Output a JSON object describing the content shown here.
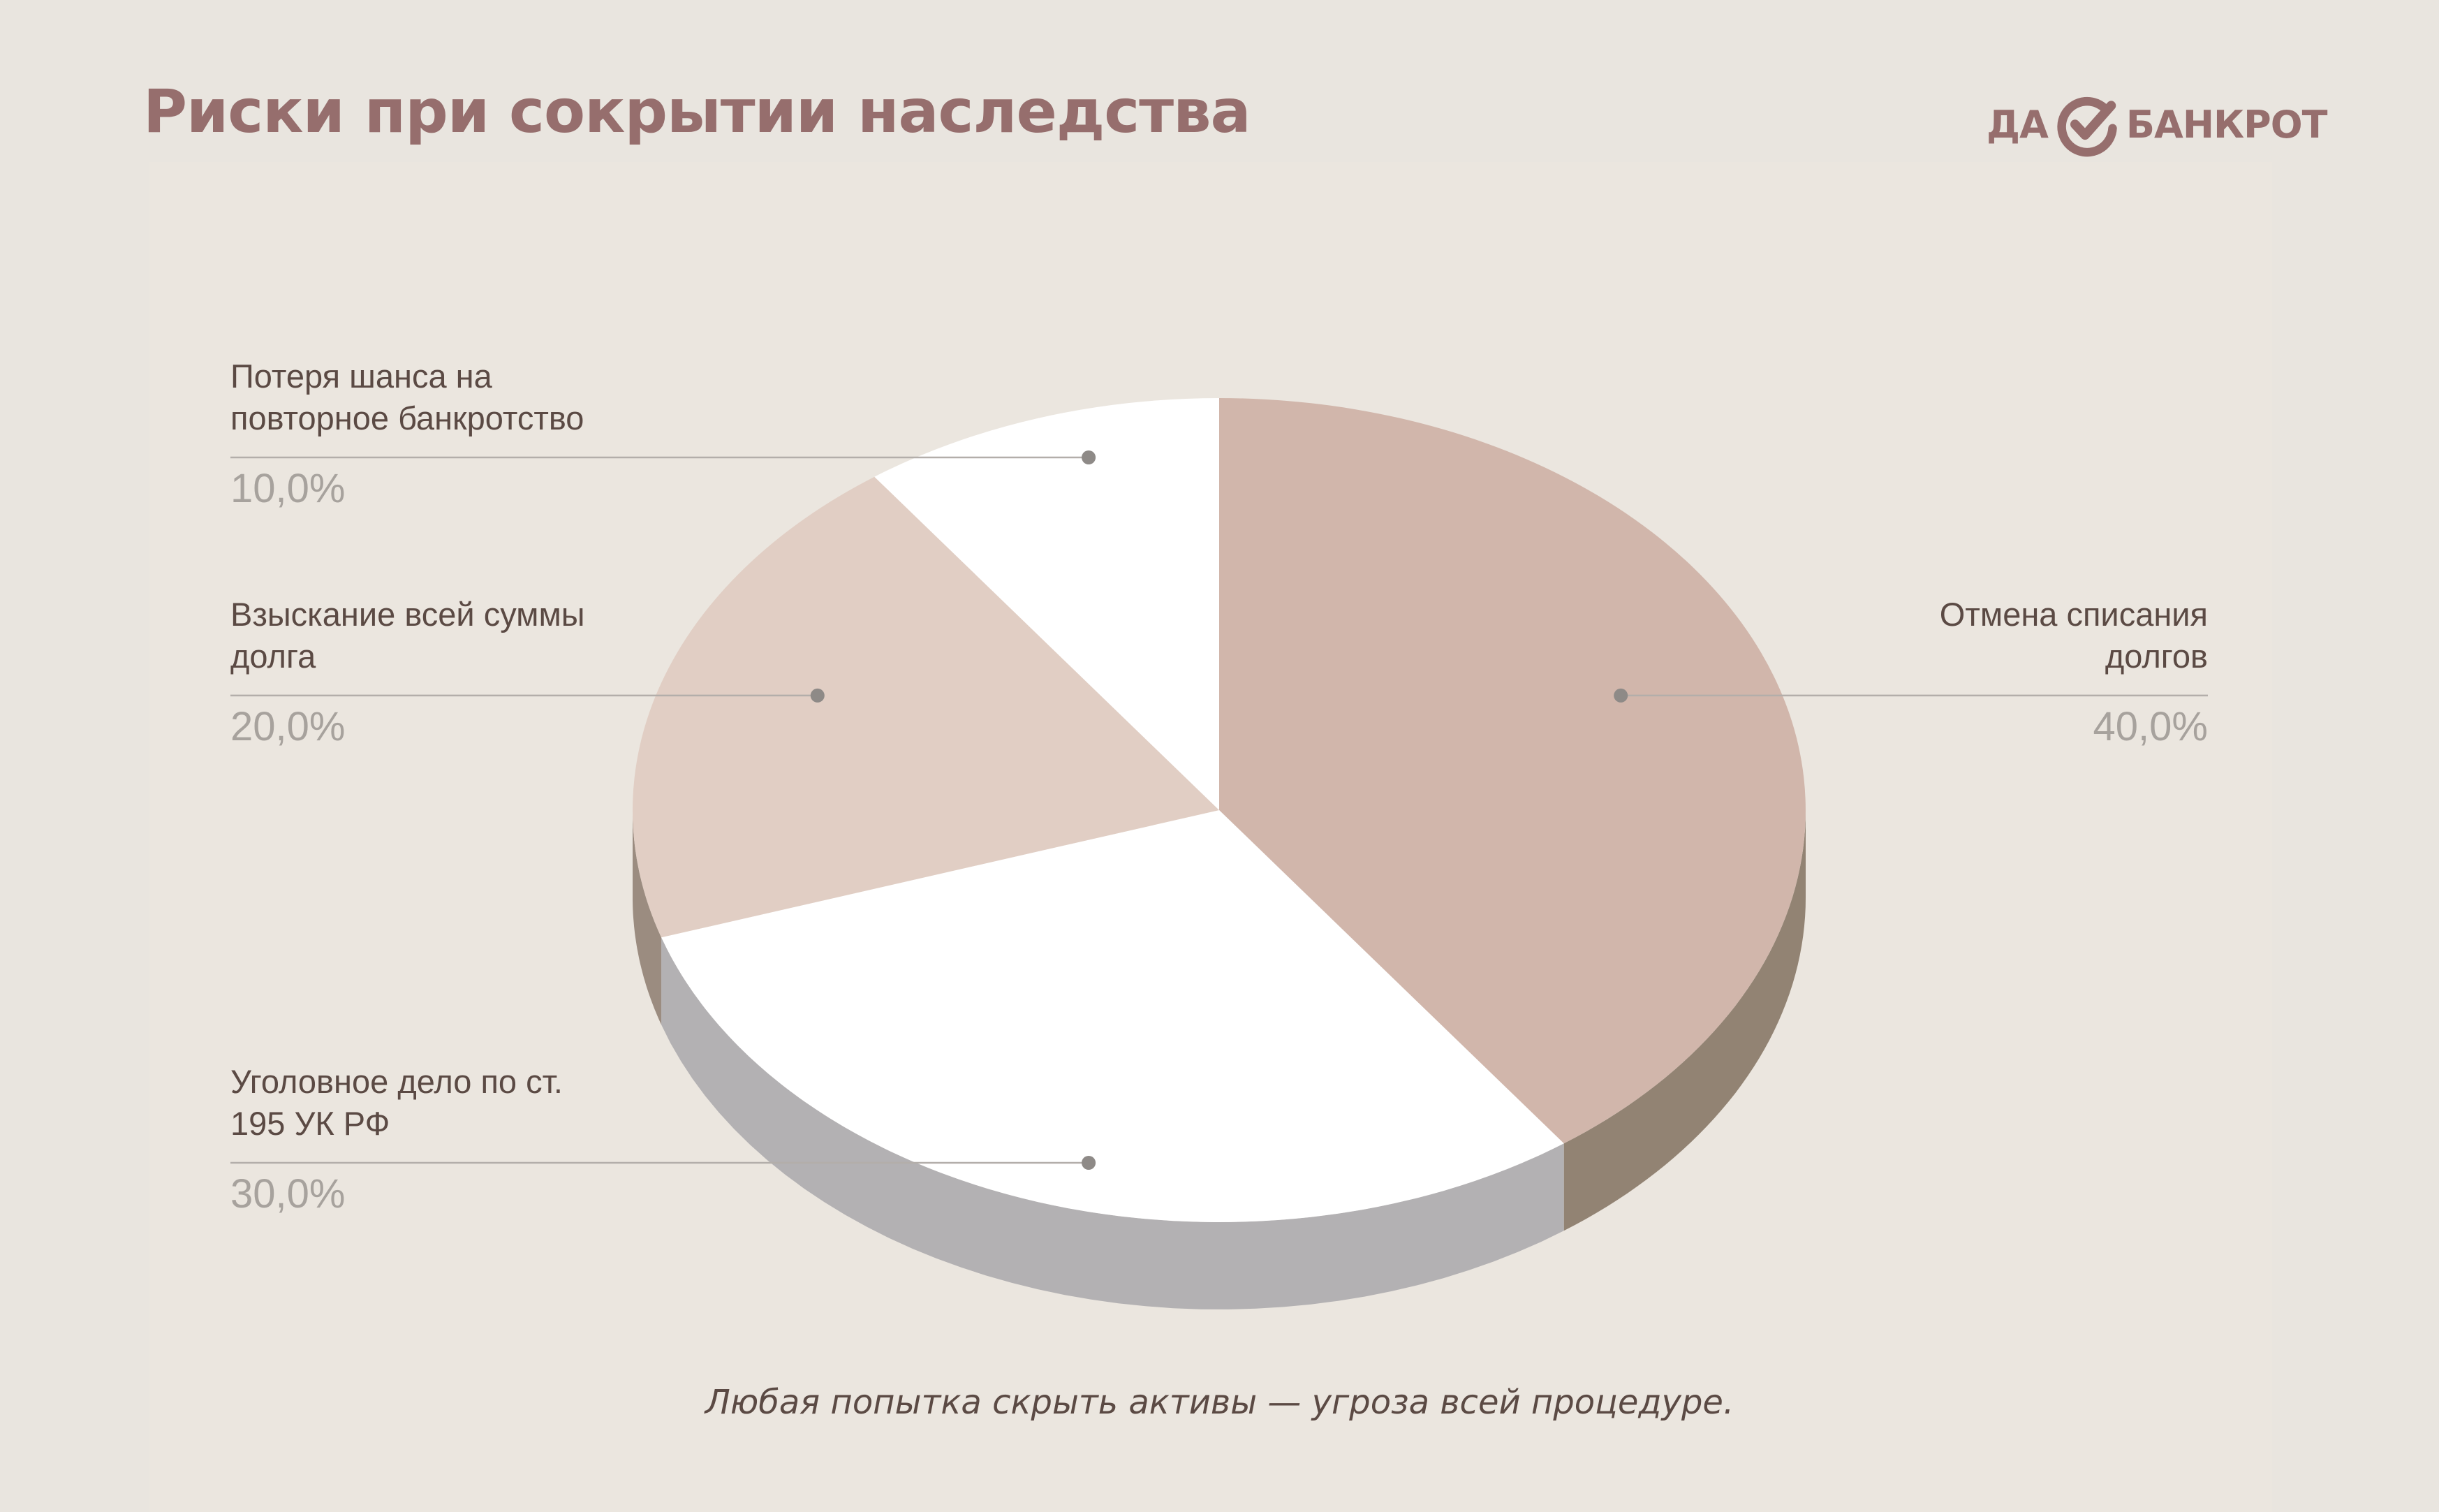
{
  "title": "Риски при сокрытии наследства",
  "logo": {
    "left_text": "ДА",
    "right_text": "БАНКРОТ",
    "mark_icon": "check-circle-icon"
  },
  "footnote": "Любая попытка скрыть активы — угроза всей процедуре.",
  "colors": {
    "background": "#e9e5df",
    "title": "#966e6d",
    "label_text": "#5b4a44",
    "percent_text": "#a7a29d",
    "leader_line": "#b3aeaa",
    "leader_dot": "#8e8a87"
  },
  "chart_data": {
    "type": "pie",
    "style": "3d",
    "categories": [
      "Отмена списания долгов",
      "Уголовное дело по ст. 195 УК РФ",
      "Взыскание всей суммы долга",
      "Потеря шанса на повторное банкротство"
    ],
    "values": [
      40.0,
      30.0,
      20.0,
      10.0
    ],
    "value_labels": [
      "40,0%",
      "30,0%",
      "20,0%",
      "10,0%"
    ],
    "label_lines": [
      [
        "Отмена списания",
        "долгов"
      ],
      [
        "Уголовное дело по ст.",
        "195 УК РФ"
      ],
      [
        "Взыскание всей суммы",
        "долга"
      ],
      [
        "Потеря шанса на",
        "повторное банкротство"
      ]
    ],
    "slice_colors": [
      "#d1b6ab",
      "#ffffff",
      "#e1cec4",
      "#ffffff"
    ],
    "side_colors": [
      "#928373",
      "#b3b1b3",
      "#9b8c80",
      "#b3b1b3"
    ],
    "legend": "none",
    "title": ""
  }
}
